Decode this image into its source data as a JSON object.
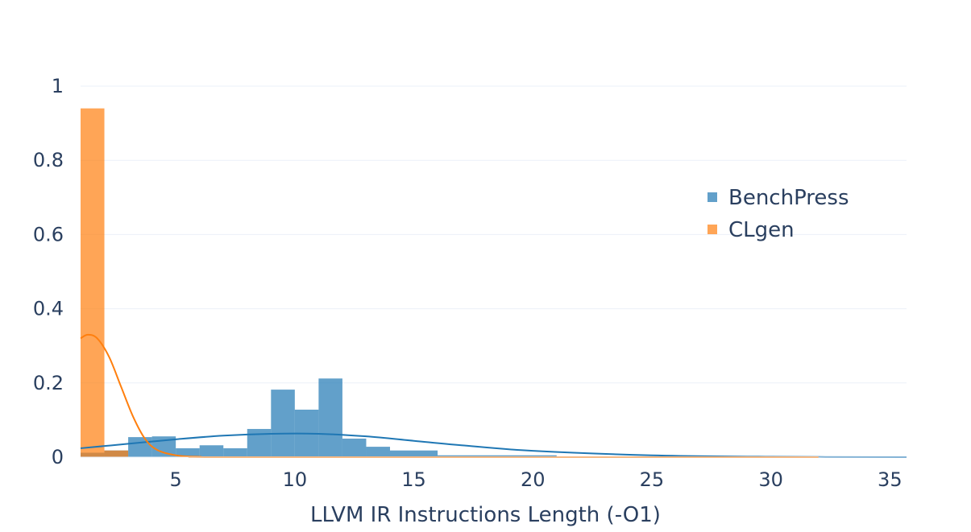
{
  "chart_data": {
    "type": "bar",
    "xlabel": "LLVM IR Instructions Length (-O1)",
    "ylabel": "",
    "title": "",
    "xlim": [
      1,
      35.7
    ],
    "ylim": [
      0,
      1.0
    ],
    "x_ticks": [
      5,
      10,
      15,
      20,
      25,
      30,
      35
    ],
    "y_ticks": [
      0,
      0.2,
      0.4,
      0.6,
      0.8,
      1
    ],
    "y_tick_labels": [
      "0",
      "0.2",
      "0.4",
      "0.6",
      "0.8",
      "1"
    ],
    "grid": true,
    "legend_position": "right",
    "series": [
      {
        "name": "BenchPress",
        "color": "#1f77b4",
        "bins": [
          {
            "x0": 1,
            "x1": 2,
            "y": 0.012
          },
          {
            "x0": 2,
            "x1": 3,
            "y": 0.018
          },
          {
            "x0": 3,
            "x1": 4,
            "y": 0.054
          },
          {
            "x0": 4,
            "x1": 5,
            "y": 0.056
          },
          {
            "x0": 5,
            "x1": 6,
            "y": 0.024
          },
          {
            "x0": 6,
            "x1": 7,
            "y": 0.032
          },
          {
            "x0": 7,
            "x1": 8,
            "y": 0.024
          },
          {
            "x0": 8,
            "x1": 9,
            "y": 0.076
          },
          {
            "x0": 9,
            "x1": 10,
            "y": 0.182
          },
          {
            "x0": 10,
            "x1": 11,
            "y": 0.128
          },
          {
            "x0": 11,
            "x1": 12,
            "y": 0.212
          },
          {
            "x0": 12,
            "x1": 13,
            "y": 0.05
          },
          {
            "x0": 13,
            "x1": 14,
            "y": 0.028
          },
          {
            "x0": 14,
            "x1": 16,
            "y": 0.018
          },
          {
            "x0": 16,
            "x1": 21,
            "y": 0.005
          }
        ],
        "kde": [
          [
            1,
            0.024
          ],
          [
            3,
            0.036
          ],
          [
            5,
            0.048
          ],
          [
            7,
            0.058
          ],
          [
            9,
            0.063
          ],
          [
            11,
            0.063
          ],
          [
            13,
            0.056
          ],
          [
            15,
            0.044
          ],
          [
            17,
            0.032
          ],
          [
            20,
            0.017
          ],
          [
            25,
            0.005
          ],
          [
            30,
            0.001
          ],
          [
            35.7,
            0.0
          ]
        ]
      },
      {
        "name": "CLgen",
        "color": "#ff7f0e",
        "bins": [
          {
            "x0": 1,
            "x1": 2,
            "y": 0.94
          },
          {
            "x0": 2,
            "x1": 3,
            "y": 0.018
          }
        ],
        "kde": [
          [
            1,
            0.32
          ],
          [
            1.3,
            0.33
          ],
          [
            1.7,
            0.32
          ],
          [
            2.2,
            0.27
          ],
          [
            2.7,
            0.19
          ],
          [
            3.2,
            0.11
          ],
          [
            3.7,
            0.05
          ],
          [
            4.2,
            0.02
          ],
          [
            5,
            0.005
          ],
          [
            6,
            0.001
          ],
          [
            8,
            0.0
          ],
          [
            32,
            0.0
          ]
        ]
      }
    ]
  }
}
